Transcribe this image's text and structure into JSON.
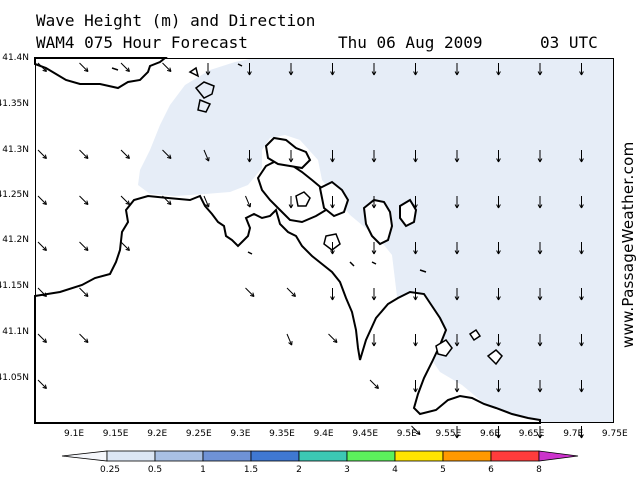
{
  "header": {
    "title_line1": "Wave Height (m) and Direction",
    "title_line2": "WAM4 075 Hour Forecast",
    "date": "Thu 06 Aug 2009",
    "time": "03 UTC"
  },
  "credit": "www.PassageWeather.com",
  "axes": {
    "lat_labels": [
      "41.4N",
      "41.35N",
      "41.3N",
      "41.25N",
      "41.2N",
      "41.15N",
      "41.1N",
      "41.05N"
    ],
    "lon_labels": [
      "9.1E",
      "9.15E",
      "9.2E",
      "9.25E",
      "9.3E",
      "9.35E",
      "9.4E",
      "9.45E",
      "9.5E",
      "9.55E",
      "9.6E",
      "9.65E",
      "9.7E",
      "9.75E"
    ]
  },
  "legend": {
    "ticks": [
      "0.25",
      "0.5",
      "1",
      "1.5",
      "2",
      "3",
      "4",
      "5",
      "6",
      "8"
    ],
    "colors": [
      "#f4f6fb",
      "#dce6f4",
      "#a9c0e4",
      "#6f92d6",
      "#3f78d2",
      "#3cc8b4",
      "#5cf05c",
      "#ffe400",
      "#ff9900",
      "#ff3c3c",
      "#cc0000",
      "#cc33cc"
    ]
  },
  "colors": {
    "sea_light": "#e6edf7",
    "land": "#ffffff",
    "coast": "#000000",
    "arrow": "#000000"
  },
  "wave_arrows": {
    "units": "direction of wave travel",
    "rows": [
      {
        "lat": "41.4N",
        "dirs": [
          "SE",
          "SE",
          "SE",
          "SE",
          "S",
          "S",
          "S",
          "S",
          "S",
          "S",
          "S",
          "S",
          "S",
          "S"
        ]
      },
      {
        "lat": "41.35N",
        "dirs": [
          "SE",
          "SE",
          "SE",
          "SE",
          "SSE",
          "S",
          "S",
          "S",
          "S",
          "S",
          "S",
          "S",
          "S",
          "S"
        ]
      },
      {
        "lat": "41.3N",
        "dirs": [
          "SE",
          "SE",
          "SE",
          "SE",
          "SSE",
          "SSE",
          "S",
          "S",
          "S",
          "S",
          "S",
          "S",
          "S",
          "S"
        ]
      },
      {
        "lat": "41.25N",
        "dirs": [
          "SE",
          "SE",
          "SE",
          "-",
          "-",
          "-",
          "-",
          "S",
          "S",
          "S",
          "S",
          "S",
          "S",
          "S"
        ]
      },
      {
        "lat": "41.2N",
        "dirs": [
          "SE",
          "SE",
          "-",
          "-",
          "-",
          "SE",
          "SE",
          "S",
          "S",
          "S",
          "S",
          "S",
          "S",
          "S"
        ]
      },
      {
        "lat": "41.15N",
        "dirs": [
          "SE",
          "SE",
          "-",
          "-",
          "-",
          "-",
          "SSE",
          "SE",
          "S",
          "S",
          "S",
          "S",
          "S",
          "S"
        ]
      },
      {
        "lat": "41.1N",
        "dirs": [
          "SE",
          "-",
          "-",
          "-",
          "-",
          "-",
          "-",
          "-",
          "SE",
          "S",
          "S",
          "S",
          "S",
          "S"
        ]
      },
      {
        "lat": "41.05N",
        "dirs": [
          "-",
          "-",
          "-",
          "-",
          "-",
          "-",
          "-",
          "-",
          "-",
          "SE",
          "S",
          "S",
          "S",
          "S"
        ]
      }
    ]
  }
}
